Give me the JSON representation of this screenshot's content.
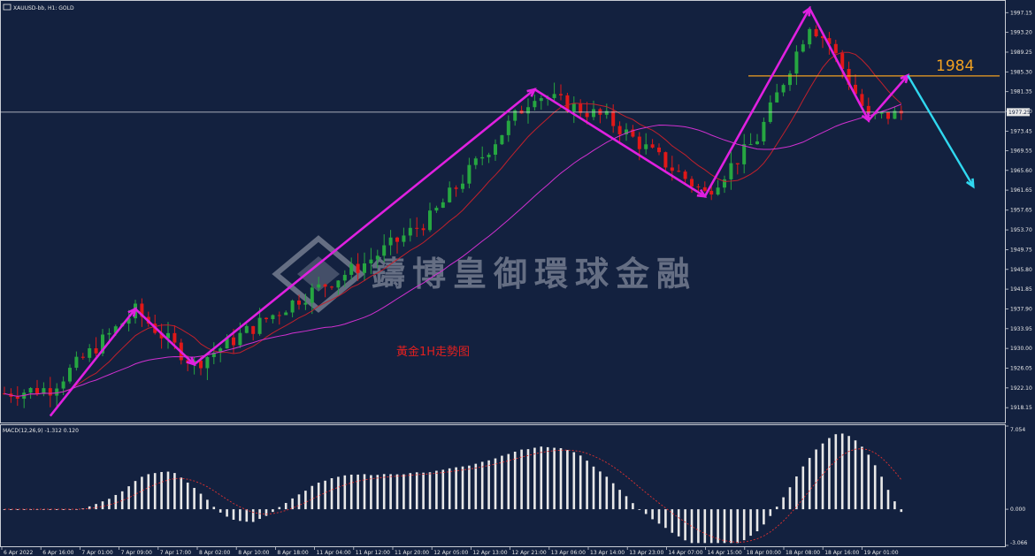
{
  "window": {
    "title": "XAUUSD-bb, H1:  GOLD",
    "icon": "chart-window-icon"
  },
  "watermark": "鑄博皇御環球金融",
  "annotation": "黃金1H走勢图",
  "level_label": "1984",
  "current_price": "1977.25",
  "indicator": {
    "label": "MACD(12,26,9) -1.312 0.120",
    "ticks": [
      "7.054",
      "0.000",
      "-3.066"
    ]
  },
  "colors": {
    "background": "#13213f",
    "bull": "#26a641",
    "bear": "#e01818",
    "ma_fast": "#c0202c",
    "ma_slow": "#d030d0",
    "zigzag": "#e020e0",
    "projection": "#30d8f0",
    "level": "#f0a020",
    "macd_hist": "#e8e8e8",
    "macd_signal": "#e03030"
  },
  "chart_data": {
    "type": "candlestick",
    "symbol": "XAUUSD-bb",
    "timeframe": "H1",
    "y_ticks": [
      "1997.15",
      "1993.20",
      "1989.25",
      "1985.30",
      "1981.35",
      "1977.40",
      "1973.45",
      "1969.55",
      "1965.60",
      "1961.65",
      "1957.65",
      "1953.70",
      "1949.75",
      "1945.80",
      "1941.85",
      "1937.90",
      "1933.95",
      "1930.00",
      "1926.05",
      "1922.10",
      "1918.15"
    ],
    "x_ticks": [
      "6 Apr 2022",
      "6 Apr 16:00",
      "7 Apr 01:00",
      "7 Apr 09:00",
      "7 Apr 17:00",
      "8 Apr 02:00",
      "8 Apr 10:00",
      "8 Apr 18:00",
      "11 Apr 04:00",
      "11 Apr 12:00",
      "11 Apr 20:00",
      "12 Apr 05:00",
      "12 Apr 13:00",
      "12 Apr 21:00",
      "13 Apr 06:00",
      "13 Apr 14:00",
      "13 Apr 23:00",
      "14 Apr 07:00",
      "14 Apr 15:00",
      "18 Apr 00:00",
      "18 Apr 08:00",
      "18 Apr 16:00",
      "19 Apr 01:00"
    ],
    "ylim": [
      1915,
      1999.5
    ],
    "horizontal_level": 1984.5,
    "current_price": 1977.25,
    "zigzag": [
      {
        "bar": 7,
        "price": 1916.5
      },
      {
        "bar": 20,
        "price": 1937.9
      },
      {
        "bar": 29,
        "price": 1926.8
      },
      {
        "bar": 81,
        "price": 1981.8
      },
      {
        "bar": 107,
        "price": 1960.4
      },
      {
        "bar": 123,
        "price": 1998.0
      },
      {
        "bar": 132,
        "price": 1975.6
      },
      {
        "bar": 138,
        "price": 1984.6
      }
    ],
    "projection": [
      {
        "bar": 138,
        "price": 1984.6
      },
      {
        "bar": 148,
        "price": 1962.4
      }
    ],
    "macd_ylim": [
      -3.066,
      7.054
    ]
  }
}
